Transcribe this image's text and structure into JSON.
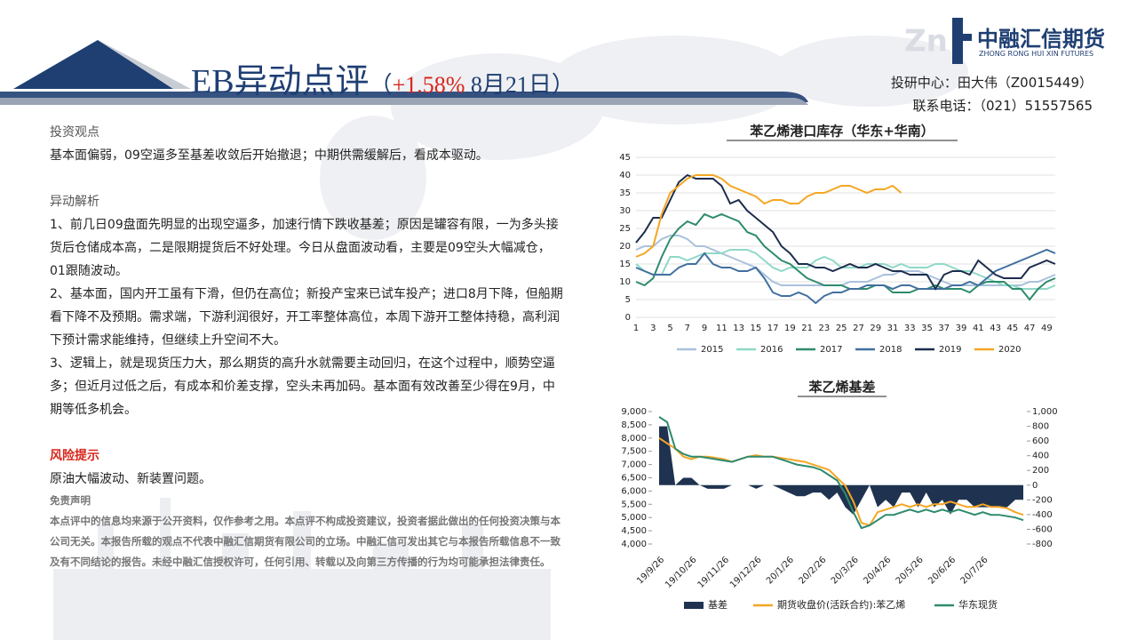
{
  "header": {
    "title": "EB异动点评",
    "note_open": "（",
    "change": "+1.58%",
    "note_date": " 8月21日）",
    "center": "投研中心：田大伟（Z0015449）",
    "phone": "联系电话：（021）51557565",
    "logo": "中融汇信期货",
    "logo_en": "ZHONG RONG HUI XIN FUTURES"
  },
  "body": {
    "view_title": "投资观点",
    "view": "基本面偏弱，09空逼多至基差收敛后开始撤退；中期供需缓解后，看成本驱动。",
    "analysis_title": "异动解析",
    "analysis": [
      "1、前几日09盘面先明显的出现空逼多，加速行情下跌收基差；原因是罐容有限，一为多头接货后仓储成本高，二是限期提货后不好处理。今日从盘面波动看，主要是09空头大幅减仓，01跟随波动。",
      "2、基本面，国内开工虽有下滑，但仍在高位；新投产宝来已试车投产；进口8月下降，但船期看下降不及预期。需求端，下游利润很好，开工率整体高位，本周下游开工整体持稳，高利润下预计需求能维持，但继续上升空间不大。",
      "3、逻辑上，就是现货压力大，那么期货的高升水就需要主动回归，在这个过程中，顺势空逼多；但近月过低之后，有成本和价差支撑，空头未再加码。基本面有效改善至少得在9月，中期等低多机会。"
    ],
    "risk_title": "风险提示",
    "risk": "原油大幅波动、新装置问题。",
    "disclaimer_title": "免责声明",
    "disclaimer": "本点评中的信息均来源于公开资料，仅作参考之用。本点评不构成投资建议，投资者据此做出的任何投资决策与本公司无关。本报告所载的观点不代表中融汇信期货有限公司的立场。中融汇信可发出其它与本报告所载信息不一致及有不同结论的报告。未经中融汇信授权许可，任何引用、转载以及向第三方传播的行为均可能承担法律责任。"
  },
  "chart_data": [
    {
      "type": "line",
      "title": "苯乙烯港口库存（华东+华南）",
      "categories": [
        1,
        null,
        3,
        null,
        5,
        null,
        7,
        null,
        9,
        null,
        11,
        null,
        13,
        null,
        15,
        null,
        17,
        null,
        19,
        null,
        21,
        null,
        23,
        null,
        25,
        null,
        27,
        null,
        29,
        null,
        31,
        null,
        33,
        null,
        35,
        null,
        37,
        null,
        39,
        null,
        41,
        null,
        43,
        null,
        45,
        null,
        47,
        null,
        49,
        null
      ],
      "ylim": [
        0,
        45
      ],
      "yticks": [
        0,
        5,
        10,
        15,
        20,
        25,
        30,
        35,
        40,
        45
      ],
      "grid": true,
      "series": [
        {
          "name": "2015",
          "color": "#a9c1dc",
          "values": [
            19,
            20,
            20,
            22,
            23,
            23,
            22,
            20,
            20,
            19,
            18,
            17,
            16,
            15,
            14,
            12,
            10,
            9,
            9,
            9,
            9,
            9,
            9,
            9,
            9,
            10,
            10,
            10,
            11,
            12,
            12,
            13,
            13,
            13,
            12,
            11,
            10,
            9,
            9,
            9,
            9,
            9,
            9,
            9,
            9,
            9,
            10,
            10,
            11,
            12
          ]
        },
        {
          "name": "2016",
          "color": "#8fd8c8",
          "values": [
            15,
            13,
            12,
            12,
            17,
            17,
            16,
            17,
            18,
            18,
            18,
            19,
            19,
            19,
            18,
            16,
            14,
            13,
            14,
            14,
            14,
            16,
            17,
            16,
            14,
            14,
            14,
            15,
            15,
            15,
            14,
            15,
            14,
            14,
            14,
            15,
            15,
            14,
            13,
            13,
            12,
            11,
            10,
            9,
            9,
            8,
            8,
            8,
            8,
            9
          ]
        },
        {
          "name": "2017",
          "color": "#2e8b6e",
          "values": [
            10,
            9,
            11,
            17,
            22,
            25,
            27,
            26,
            29,
            28,
            29,
            28,
            27,
            24,
            23,
            20,
            18,
            16,
            15,
            13,
            11,
            10,
            9,
            9,
            9,
            8,
            8,
            8,
            9,
            9,
            7,
            7,
            7,
            8,
            8,
            9,
            8,
            8,
            8,
            7,
            9,
            10,
            10,
            10,
            8,
            8,
            5,
            8,
            10,
            11
          ]
        },
        {
          "name": "2018",
          "color": "#41709f",
          "values": [
            14,
            13,
            12,
            12,
            12,
            14,
            15,
            15,
            18,
            15,
            14,
            14,
            13,
            13,
            14,
            11,
            7,
            6,
            6,
            7,
            6,
            4,
            6,
            7,
            7,
            8,
            8,
            9,
            9,
            9,
            8,
            9,
            9,
            8,
            8,
            8,
            8,
            9,
            9,
            10,
            9,
            11,
            13,
            14,
            15,
            16,
            17,
            18,
            19,
            18
          ]
        },
        {
          "name": "2019",
          "color": "#1c2d4d",
          "values": [
            21,
            24,
            28,
            28,
            33,
            38,
            40,
            39,
            39,
            39,
            37,
            32,
            33,
            30,
            28,
            26,
            24,
            20,
            18,
            15,
            15,
            14,
            14,
            13,
            14,
            15,
            14,
            14,
            15,
            14,
            13,
            13,
            12,
            12,
            12,
            8,
            12,
            13,
            13,
            12,
            16,
            14,
            12,
            11,
            11,
            11,
            14,
            15,
            16,
            15
          ]
        },
        {
          "name": "2020",
          "color": "#f5a623",
          "values": [
            17,
            18,
            20,
            29,
            35,
            37,
            39,
            40,
            40,
            40,
            39,
            37,
            36,
            35,
            34,
            32,
            33,
            33,
            32,
            32,
            34,
            35,
            35,
            36,
            37,
            37,
            36,
            35,
            36,
            36,
            37,
            35,
            null,
            null,
            null,
            null,
            null,
            null,
            null,
            null,
            null,
            null,
            null,
            null,
            null,
            null,
            null,
            null,
            null,
            null
          ]
        }
      ]
    },
    {
      "type": "combo",
      "title": "苯乙烯基差",
      "categories": [
        "19/9/26",
        null,
        null,
        null,
        "19/10/26",
        null,
        null,
        null,
        "19/11/26",
        null,
        null,
        null,
        "19/12/26",
        null,
        null,
        null,
        "20/1/26",
        null,
        null,
        null,
        "20/2/26",
        null,
        null,
        null,
        "20/3/26",
        null,
        null,
        null,
        "20/4/26",
        null,
        null,
        null,
        "20/5/26",
        null,
        null,
        null,
        "20/6/26",
        null,
        null,
        null,
        "20/7/26",
        null,
        null,
        null,
        null,
        null
      ],
      "ylim": [
        4000,
        9000
      ],
      "yticks": [
        {
          "value": 4000,
          "label": "4,000"
        },
        {
          "value": 4500,
          "label": "4,500"
        },
        {
          "value": 5000,
          "label": "5,000"
        },
        {
          "value": 5500,
          "label": "5,500"
        },
        {
          "value": 6000,
          "label": "6,000"
        },
        {
          "value": 6500,
          "label": "6,500"
        },
        {
          "value": 7000,
          "label": "7,000"
        },
        {
          "value": 7500,
          "label": "7,500"
        },
        {
          "value": 8000,
          "label": "8,000"
        },
        {
          "value": 8500,
          "label": "8,500"
        },
        {
          "value": 9000,
          "label": "9,000"
        }
      ],
      "y2lim": [
        -800,
        1000
      ],
      "y2ticks": [
        -800,
        -600,
        -400,
        -200,
        0,
        200,
        400,
        600,
        800,
        {
          "value": 1000,
          "label": "1,000"
        }
      ],
      "series": [
        {
          "name": "基差",
          "color": "#1f3350",
          "kind": "area",
          "axis": "y2",
          "values": [
            800,
            800,
            0,
            100,
            100,
            0,
            -50,
            -50,
            -50,
            0,
            0,
            0,
            -50,
            0,
            0,
            -50,
            -100,
            -150,
            -150,
            -100,
            -100,
            -200,
            -100,
            -300,
            -400,
            -200,
            0,
            -300,
            -200,
            -300,
            -100,
            -100,
            -300,
            -100,
            -300,
            -200,
            -400,
            -200,
            -200,
            -300,
            -300,
            -300,
            -300,
            -300,
            -200,
            -200
          ]
        },
        {
          "name": "期货收盘价(活跃合约):苯乙烯",
          "color": "#f5a623",
          "kind": "line",
          "values": [
            8000,
            7800,
            7600,
            7300,
            7200,
            7300,
            7300,
            7250,
            7200,
            7100,
            7200,
            7300,
            7350,
            7300,
            7300,
            7250,
            7200,
            7150,
            7100,
            7000,
            6900,
            6800,
            6500,
            6200,
            5600,
            4800,
            4700,
            5200,
            5300,
            5400,
            5500,
            5400,
            5500,
            5400,
            5500,
            5500,
            5600,
            5500,
            5400,
            5400,
            5500,
            5400,
            5400,
            5350,
            5200,
            5100
          ]
        },
        {
          "name": "华东现货",
          "color": "#2e8b6e",
          "kind": "line",
          "values": [
            8800,
            8600,
            7600,
            7400,
            7300,
            7300,
            7250,
            7200,
            7150,
            7100,
            7200,
            7300,
            7300,
            7300,
            7300,
            7200,
            7100,
            7000,
            6950,
            6900,
            6800,
            6600,
            6400,
            5900,
            5200,
            4600,
            4700,
            4900,
            5100,
            5100,
            5200,
            5300,
            5200,
            5300,
            5200,
            5300,
            5200,
            5300,
            5200,
            5100,
            5200,
            5100,
            5100,
            5050,
            5000,
            4900
          ]
        }
      ]
    }
  ]
}
